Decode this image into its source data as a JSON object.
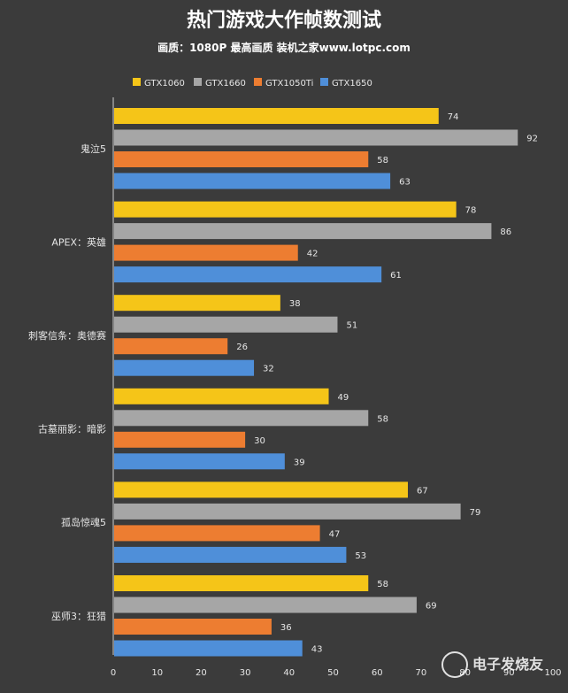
{
  "chart_data": {
    "type": "bar",
    "orientation": "horizontal",
    "title": "热门游戏大作帧数测试",
    "subtitle": "画质：1080P 最高画质 装机之家www.lotpc.com",
    "categories": [
      "鬼泣5",
      "APEX：英雄",
      "刺客信条：奥德赛",
      "古墓丽影：暗影",
      "孤岛惊魂5",
      "巫师3：狂猎"
    ],
    "series": [
      {
        "name": "GTX1060",
        "color": "#f5c518",
        "values": [
          74,
          78,
          38,
          49,
          67,
          58
        ]
      },
      {
        "name": "GTX1660",
        "color": "#a6a6a6",
        "values": [
          92,
          86,
          51,
          58,
          79,
          69
        ]
      },
      {
        "name": "GTX1050Ti",
        "color": "#ed7d31",
        "values": [
          58,
          42,
          26,
          30,
          47,
          36
        ]
      },
      {
        "name": "GTX1650",
        "color": "#4f8fd9",
        "values": [
          63,
          61,
          32,
          39,
          53,
          43
        ]
      }
    ],
    "xlim": [
      0,
      100
    ],
    "xticks": [
      0,
      10,
      20,
      30,
      40,
      50,
      60,
      70,
      80,
      90,
      100
    ],
    "grid": false,
    "legend": "top"
  },
  "watermark": "电子发烧友"
}
